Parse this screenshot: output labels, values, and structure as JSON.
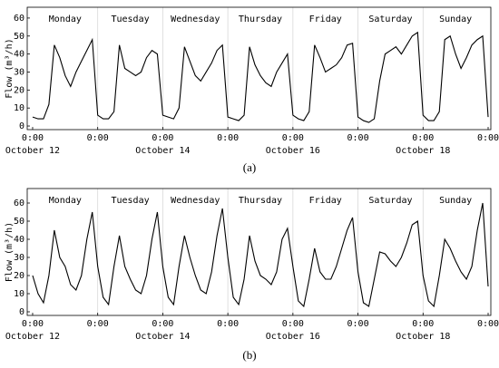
{
  "chart_data": [
    {
      "type": "line",
      "caption": "(a)",
      "y_label": "Flow (m³/h)",
      "day_labels": [
        "Monday",
        "Tuesday",
        "Wednesday",
        "Thursday",
        "Friday",
        "Saturday",
        "Sunday"
      ],
      "xlim": [
        -2,
        169
      ],
      "ylim": [
        -2,
        66
      ],
      "xticks": [
        {
          "value": 0,
          "label": "0:00"
        },
        {
          "value": 24,
          "label": "0:00"
        },
        {
          "value": 48,
          "label": "0:00"
        },
        {
          "value": 72,
          "label": "0:00"
        },
        {
          "value": 96,
          "label": "0:00"
        },
        {
          "value": 120,
          "label": "0:00"
        },
        {
          "value": 144,
          "label": "0:00"
        },
        {
          "value": 168,
          "label": "0:00"
        }
      ],
      "date_labels": [
        {
          "value": 0,
          "label": "October 12"
        },
        {
          "value": 48,
          "label": "October 14"
        },
        {
          "value": 96,
          "label": "October 16"
        },
        {
          "value": 144,
          "label": "October 18"
        }
      ],
      "yticks": [
        0,
        10,
        20,
        30,
        40,
        50,
        60
      ],
      "series": [
        {
          "color": "#000000",
          "x": [
            0,
            2,
            4,
            6,
            8,
            10,
            12,
            14,
            16,
            18,
            20,
            22,
            24,
            26,
            28,
            30,
            32,
            34,
            36,
            38,
            40,
            42,
            44,
            46,
            48,
            50,
            52,
            54,
            56,
            58,
            60,
            62,
            64,
            66,
            68,
            70,
            72,
            74,
            76,
            78,
            80,
            82,
            84,
            86,
            88,
            90,
            92,
            94,
            96,
            98,
            100,
            102,
            104,
            106,
            108,
            110,
            112,
            114,
            116,
            118,
            120,
            122,
            124,
            126,
            128,
            130,
            132,
            134,
            136,
            138,
            140,
            142,
            144,
            146,
            148,
            150,
            152,
            154,
            156,
            158,
            160,
            162,
            164,
            166,
            168
          ],
          "values": [
            5,
            4,
            4,
            12,
            45,
            38,
            28,
            22,
            30,
            36,
            42,
            48,
            6,
            4,
            4,
            8,
            45,
            32,
            30,
            28,
            30,
            38,
            42,
            40,
            6,
            5,
            4,
            10,
            44,
            36,
            28,
            25,
            30,
            35,
            42,
            45,
            5,
            4,
            3,
            6,
            44,
            34,
            28,
            24,
            22,
            30,
            35,
            40,
            6,
            4,
            3,
            8,
            45,
            38,
            30,
            32,
            34,
            38,
            45,
            46,
            5,
            3,
            2,
            4,
            25,
            40,
            42,
            44,
            40,
            45,
            50,
            52,
            6,
            3,
            3,
            8,
            48,
            50,
            40,
            32,
            38,
            45,
            48,
            50,
            5
          ]
        }
      ]
    },
    {
      "type": "line",
      "caption": "(b)",
      "y_label": "Flow (m³/h)",
      "day_labels": [
        "Monday",
        "Tuesday",
        "Wednesday",
        "Thursday",
        "Friday",
        "Saturday",
        "Sunday"
      ],
      "xlim": [
        -2,
        169
      ],
      "ylim": [
        -2,
        68
      ],
      "xticks": [
        {
          "value": 0,
          "label": "0:00"
        },
        {
          "value": 24,
          "label": "0:00"
        },
        {
          "value": 48,
          "label": "0:00"
        },
        {
          "value": 72,
          "label": "0:00"
        },
        {
          "value": 96,
          "label": "0:00"
        },
        {
          "value": 120,
          "label": "0:00"
        },
        {
          "value": 144,
          "label": "0:00"
        },
        {
          "value": 168,
          "label": "0:00"
        }
      ],
      "date_labels": [
        {
          "value": 0,
          "label": "October 12"
        },
        {
          "value": 48,
          "label": "October 14"
        },
        {
          "value": 96,
          "label": "October 16"
        },
        {
          "value": 144,
          "label": "October 18"
        }
      ],
      "yticks": [
        0,
        10,
        20,
        30,
        40,
        50,
        60
      ],
      "series": [
        {
          "color": "#000000",
          "x": [
            0,
            2,
            4,
            6,
            8,
            10,
            12,
            14,
            16,
            18,
            20,
            22,
            24,
            26,
            28,
            30,
            32,
            34,
            36,
            38,
            40,
            42,
            44,
            46,
            48,
            50,
            52,
            54,
            56,
            58,
            60,
            62,
            64,
            66,
            68,
            70,
            72,
            74,
            76,
            78,
            80,
            82,
            84,
            86,
            88,
            90,
            92,
            94,
            96,
            98,
            100,
            102,
            104,
            106,
            108,
            110,
            112,
            114,
            116,
            118,
            120,
            122,
            124,
            126,
            128,
            130,
            132,
            134,
            136,
            138,
            140,
            142,
            144,
            146,
            148,
            150,
            152,
            154,
            156,
            158,
            160,
            162,
            164,
            166,
            168
          ],
          "values": [
            20,
            10,
            5,
            20,
            45,
            30,
            25,
            15,
            12,
            20,
            40,
            55,
            25,
            8,
            4,
            25,
            42,
            25,
            18,
            12,
            10,
            20,
            40,
            55,
            25,
            8,
            4,
            25,
            42,
            30,
            20,
            12,
            10,
            22,
            42,
            57,
            30,
            8,
            4,
            18,
            42,
            28,
            20,
            18,
            15,
            22,
            40,
            46,
            25,
            6,
            3,
            18,
            35,
            22,
            18,
            18,
            25,
            35,
            45,
            52,
            22,
            5,
            3,
            18,
            33,
            32,
            28,
            25,
            30,
            38,
            48,
            50,
            20,
            6,
            3,
            20,
            40,
            35,
            28,
            22,
            18,
            25,
            45,
            60,
            14
          ]
        }
      ]
    }
  ]
}
